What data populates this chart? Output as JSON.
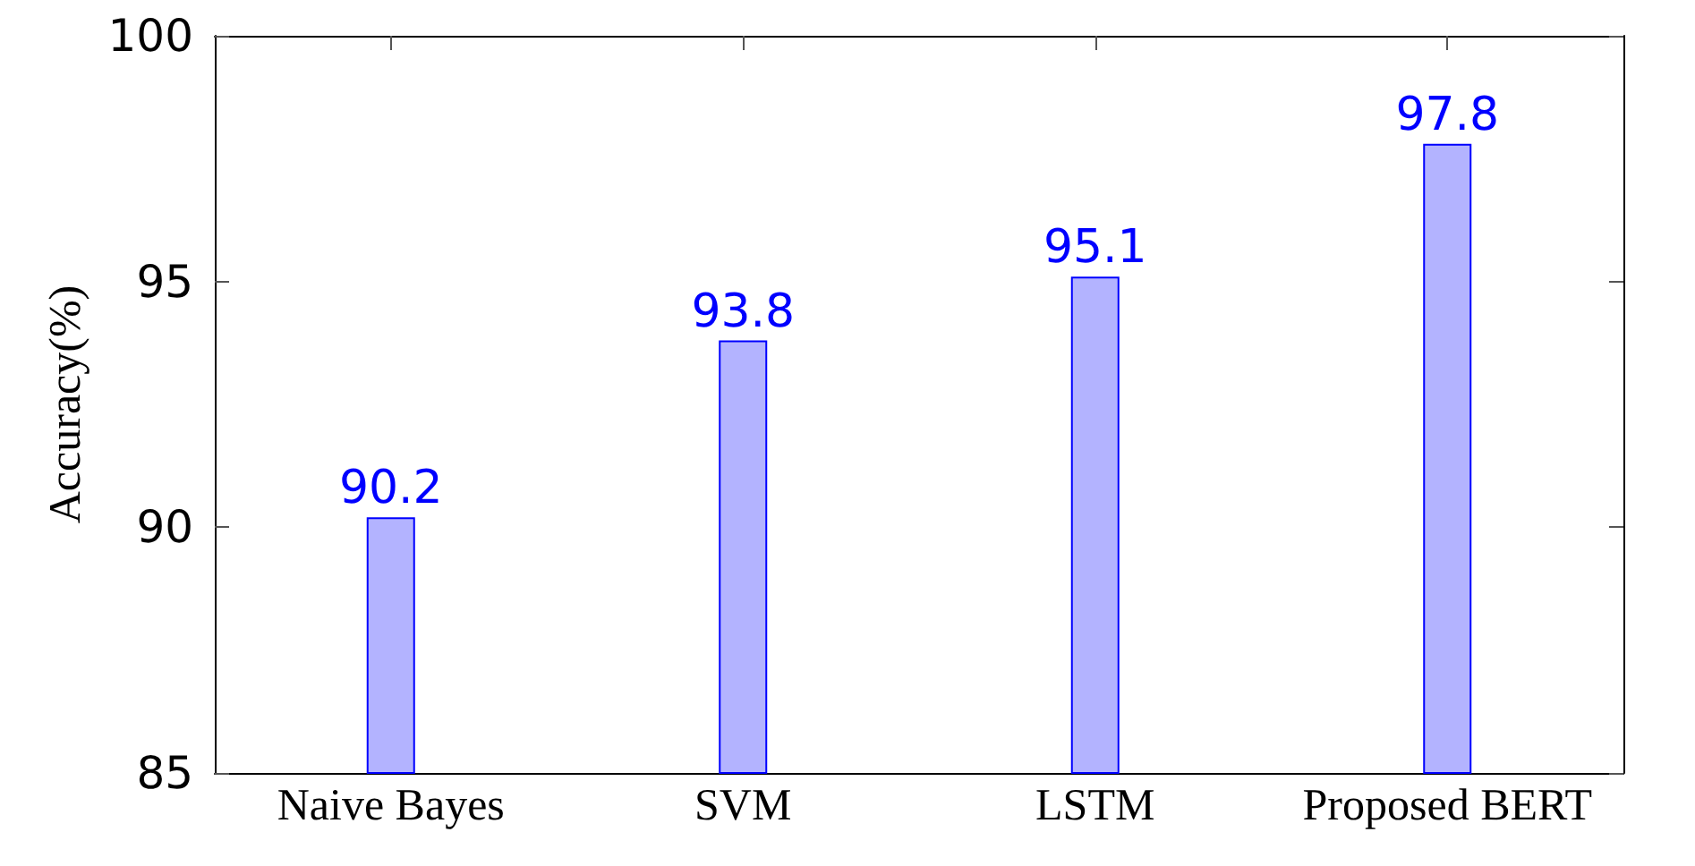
{
  "chart_data": {
    "type": "bar",
    "ylabel": "Accuracy(%)",
    "categories": [
      "Naive Bayes",
      "SVM",
      "LSTM",
      "Proposed BERT"
    ],
    "series": [
      {
        "color": "#b3b3ff",
        "values": [
          90.2,
          93.8,
          95.1,
          97.8
        ]
      }
    ],
    "ylim": [
      85,
      100
    ],
    "yticks": [
      85,
      90,
      95,
      100
    ],
    "data_labels": true
  }
}
